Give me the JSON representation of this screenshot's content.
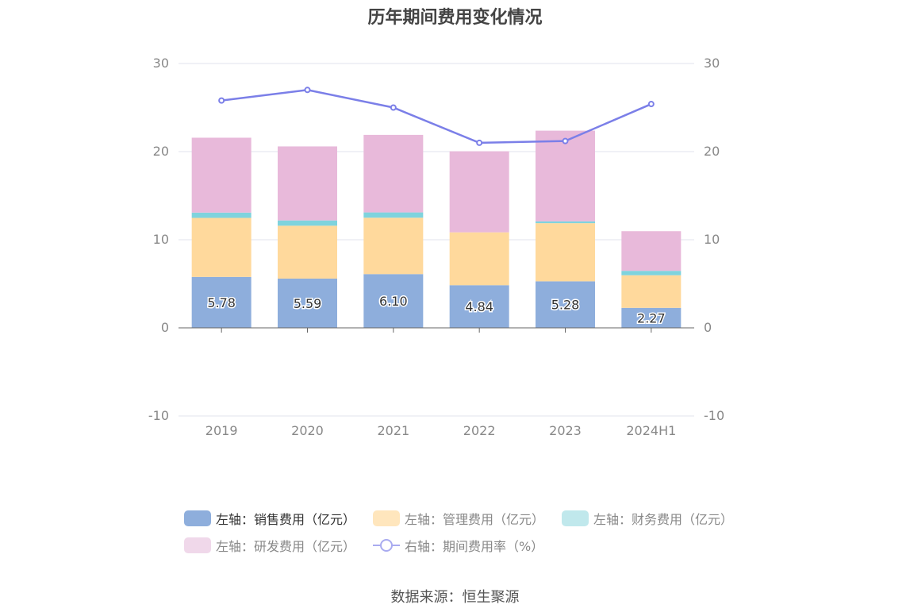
{
  "title": "历年期间费用变化情况",
  "source": "数据来源：恒生聚源",
  "colors": {
    "sales": "#8eaedc",
    "admin": "#ffd99c",
    "finance": "#7fd3dd",
    "rd": "#e8b9da",
    "rate": "#7b7fe8",
    "grid": "#e0e3ee",
    "axis": "#666666",
    "tick_text": "#888888"
  },
  "legend": [
    {
      "label": "左轴：销售费用（亿元）",
      "color": "#8eaedc",
      "kind": "bar"
    },
    {
      "label": "左轴：管理费用（亿元）",
      "color": "#ffe6bd",
      "kind": "bar"
    },
    {
      "label": "左轴：财务费用（亿元）",
      "color": "#c0e8ec",
      "kind": "bar"
    },
    {
      "label": "左轴：研发费用（亿元）",
      "color": "#f0d8ea",
      "kind": "bar"
    },
    {
      "label": "右轴：期间费用率（%）",
      "color": "#a9abf0",
      "kind": "line"
    }
  ],
  "chart_data": {
    "type": "bar",
    "stacked": true,
    "title": "历年期间费用变化情况",
    "categories": [
      "2019",
      "2020",
      "2021",
      "2022",
      "2023",
      "2024H1"
    ],
    "y_left": {
      "ylim": [
        -10,
        30
      ],
      "ticks": [
        -10,
        0,
        10,
        20,
        30
      ]
    },
    "y_right": {
      "ylim": [
        -10,
        30
      ],
      "ticks": [
        -10,
        0,
        10,
        20,
        30
      ]
    },
    "series": [
      {
        "name": "左轴：销售费用（亿元）",
        "axis": "left",
        "type": "bar",
        "values": [
          5.78,
          5.59,
          6.1,
          4.84,
          5.28,
          2.27
        ],
        "labels": [
          "5.78",
          "5.59",
          "6.10",
          "4.84",
          "5.28",
          "2.27"
        ]
      },
      {
        "name": "左轴：管理费用（亿元）",
        "axis": "left",
        "type": "bar",
        "values": [
          6.7,
          6.0,
          6.4,
          6.0,
          6.6,
          3.7
        ]
      },
      {
        "name": "左轴：财务费用（亿元）",
        "axis": "left",
        "type": "bar",
        "values": [
          0.6,
          0.6,
          0.6,
          0.0,
          0.2,
          0.5
        ]
      },
      {
        "name": "左轴：研发费用（亿元）",
        "axis": "left",
        "type": "bar",
        "values": [
          8.5,
          8.4,
          8.8,
          9.2,
          10.3,
          4.5
        ]
      },
      {
        "name": "右轴：期间费用率（%）",
        "axis": "right",
        "type": "line",
        "values": [
          25.8,
          27.0,
          25.0,
          21.0,
          21.2,
          25.4
        ]
      }
    ],
    "grid": true,
    "legend_position": "bottom"
  }
}
